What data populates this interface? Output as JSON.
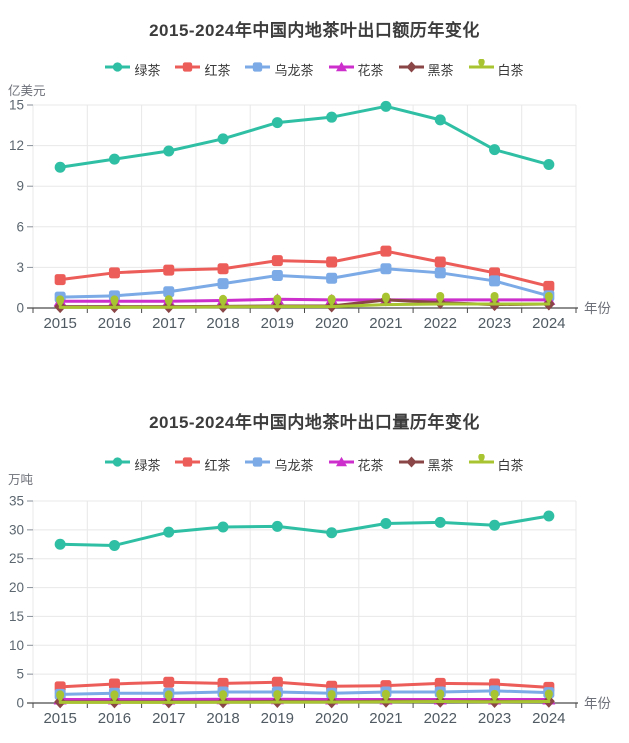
{
  "page": {
    "background": "#ffffff"
  },
  "chart_data": [
    {
      "type": "line",
      "title": "2015-2024年中国内地茶叶出口额历年变化",
      "ylabel": "亿美元",
      "xlabel": "年份",
      "categories": [
        "2015",
        "2016",
        "2017",
        "2018",
        "2019",
        "2020",
        "2021",
        "2022",
        "2023",
        "2024"
      ],
      "ylim": [
        0,
        15
      ],
      "yticks": [
        0,
        3,
        6,
        9,
        12,
        15
      ],
      "grid": true,
      "legend_position": "top",
      "series": [
        {
          "name": "绿茶",
          "key": "green-tea",
          "color": "#2FBFA4",
          "symbol": "circle",
          "values": [
            10.4,
            11.0,
            11.6,
            12.5,
            13.7,
            14.1,
            14.9,
            13.9,
            11.7,
            10.6
          ]
        },
        {
          "name": "红茶",
          "key": "red-tea",
          "color": "#EC5D5A",
          "symbol": "roundRect",
          "values": [
            2.1,
            2.6,
            2.8,
            2.9,
            3.5,
            3.4,
            4.2,
            3.4,
            2.6,
            1.6
          ]
        },
        {
          "name": "乌龙茶",
          "key": "oolong-tea",
          "color": "#7BAAE6",
          "symbol": "roundRect",
          "values": [
            0.8,
            0.9,
            1.2,
            1.8,
            2.4,
            2.2,
            2.9,
            2.6,
            2.0,
            0.9
          ]
        },
        {
          "name": "花茶",
          "key": "flower-tea",
          "color": "#CC2FCC",
          "symbol": "triangle",
          "values": [
            0.5,
            0.5,
            0.5,
            0.55,
            0.65,
            0.6,
            0.6,
            0.6,
            0.6,
            0.6
          ]
        },
        {
          "name": "黑茶",
          "key": "dark-tea",
          "color": "#8A4646",
          "symbol": "diamond",
          "values": [
            0.1,
            0.1,
            0.1,
            0.12,
            0.15,
            0.15,
            0.6,
            0.4,
            0.25,
            0.3
          ]
        },
        {
          "name": "白茶",
          "key": "white-tea",
          "color": "#A9C431",
          "symbol": "pin",
          "values": [
            0.05,
            0.05,
            0.06,
            0.08,
            0.1,
            0.1,
            0.25,
            0.3,
            0.3,
            0.3
          ]
        }
      ]
    },
    {
      "type": "line",
      "title": "2015-2024年中国内地茶叶出口量历年变化",
      "ylabel": "万吨",
      "xlabel": "年份",
      "categories": [
        "2015",
        "2016",
        "2017",
        "2018",
        "2019",
        "2020",
        "2021",
        "2022",
        "2023",
        "2024"
      ],
      "ylim": [
        0,
        35
      ],
      "yticks": [
        0,
        5,
        10,
        15,
        20,
        25,
        30,
        35
      ],
      "grid": true,
      "legend_position": "top",
      "series": [
        {
          "name": "绿茶",
          "key": "green-tea",
          "color": "#2FBFA4",
          "symbol": "circle",
          "values": [
            27.5,
            27.3,
            29.6,
            30.5,
            30.6,
            29.5,
            31.1,
            31.3,
            30.8,
            32.4
          ]
        },
        {
          "name": "红茶",
          "key": "red-tea",
          "color": "#EC5D5A",
          "symbol": "roundRect",
          "values": [
            2.8,
            3.3,
            3.6,
            3.4,
            3.6,
            2.9,
            3.0,
            3.4,
            3.3,
            2.7
          ]
        },
        {
          "name": "乌龙茶",
          "key": "oolong-tea",
          "color": "#7BAAE6",
          "symbol": "roundRect",
          "values": [
            1.5,
            1.7,
            1.7,
            1.9,
            1.9,
            1.7,
            1.9,
            1.9,
            2.1,
            1.8
          ]
        },
        {
          "name": "花茶",
          "key": "flower-tea",
          "color": "#CC2FCC",
          "symbol": "triangle",
          "values": [
            0.6,
            0.6,
            0.6,
            0.65,
            0.65,
            0.6,
            0.6,
            0.6,
            0.6,
            0.6
          ]
        },
        {
          "name": "黑茶",
          "key": "dark-tea",
          "color": "#8A4646",
          "symbol": "diamond",
          "values": [
            0.2,
            0.2,
            0.2,
            0.2,
            0.25,
            0.2,
            0.3,
            0.3,
            0.25,
            0.3
          ]
        },
        {
          "name": "白茶",
          "key": "white-tea",
          "color": "#A9C431",
          "symbol": "pin",
          "values": [
            0.1,
            0.1,
            0.1,
            0.12,
            0.15,
            0.15,
            0.2,
            0.25,
            0.2,
            0.25
          ]
        }
      ]
    }
  ],
  "style": {
    "grid_color": "#e8e8e8",
    "axis_color": "#4a4a4a",
    "ytick_color": "#5c6770",
    "xtick_color": "#4f5a62",
    "axis_name_color": "#6e7079"
  }
}
